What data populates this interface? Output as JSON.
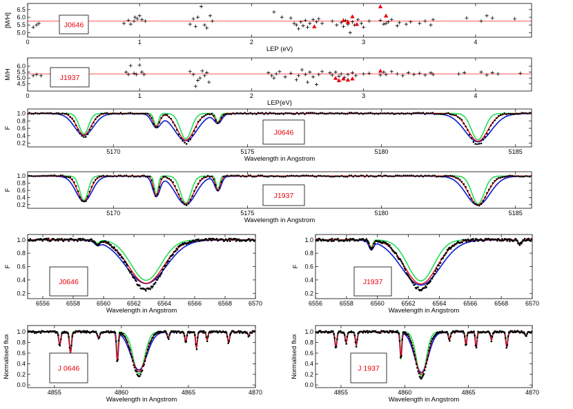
{
  "colors": {
    "observed": "#000000",
    "fit_red": "#e8000b",
    "fit_green": "#22dd55",
    "fit_blue": "#1020d0",
    "highlight_points": "#e8000b",
    "mean_line": "#ff5555"
  },
  "chart_data": [
    {
      "id": "mh-j0646",
      "type": "scatter",
      "ylabel": "[M/H]",
      "xlabel": "LEP (eV)",
      "xlim": [
        0,
        4.5
      ],
      "ylim": [
        4.7,
        6.9
      ],
      "xticks": [
        "0",
        "1",
        "2",
        "3",
        "4"
      ],
      "yticks": [
        "5.0",
        "5.5",
        "6.0",
        "6.5"
      ],
      "star_label": "J0646",
      "mean": 5.75,
      "points": [
        [
          0.05,
          5.35
        ],
        [
          0.08,
          5.5
        ],
        [
          0.1,
          5.6
        ],
        [
          0.86,
          5.6
        ],
        [
          0.9,
          5.8
        ],
        [
          0.92,
          5.55
        ],
        [
          0.95,
          5.75
        ],
        [
          0.96,
          6.0
        ],
        [
          0.98,
          5.9
        ],
        [
          1.0,
          6.1
        ],
        [
          1.02,
          5.85
        ],
        [
          1.05,
          5.75
        ],
        [
          1.45,
          5.55
        ],
        [
          1.48,
          5.9
        ],
        [
          1.5,
          5.4
        ],
        [
          1.52,
          6.0
        ],
        [
          1.55,
          6.7
        ],
        [
          1.58,
          5.5
        ],
        [
          1.6,
          5.3
        ],
        [
          1.63,
          6.1
        ],
        [
          1.65,
          5.75
        ],
        [
          2.2,
          6.35
        ],
        [
          2.27,
          6.0
        ],
        [
          2.35,
          5.95
        ],
        [
          2.38,
          5.6
        ],
        [
          2.4,
          5.5
        ],
        [
          2.42,
          5.25
        ],
        [
          2.44,
          5.7
        ],
        [
          2.46,
          5.45
        ],
        [
          2.48,
          5.8
        ],
        [
          2.5,
          5.35
        ],
        [
          2.52,
          5.6
        ],
        [
          2.55,
          5.85
        ],
        [
          2.58,
          5.7
        ],
        [
          2.6,
          5.9
        ],
        [
          2.63,
          5.6
        ],
        [
          2.72,
          5.75
        ],
        [
          2.76,
          5.5
        ],
        [
          2.8,
          5.65
        ],
        [
          2.82,
          5.4
        ],
        [
          2.84,
          5.8
        ],
        [
          2.86,
          5.55
        ],
        [
          2.88,
          5.0
        ],
        [
          2.9,
          5.7
        ],
        [
          2.92,
          5.5
        ],
        [
          2.95,
          5.85
        ],
        [
          2.98,
          5.6
        ],
        [
          3.0,
          5.35
        ],
        [
          3.05,
          5.75
        ],
        [
          3.15,
          5.8
        ],
        [
          3.18,
          5.55
        ],
        [
          3.2,
          5.6
        ],
        [
          3.22,
          5.7
        ],
        [
          3.25,
          5.85
        ],
        [
          3.3,
          5.45
        ],
        [
          3.32,
          5.65
        ],
        [
          3.38,
          5.55
        ],
        [
          3.42,
          5.7
        ],
        [
          3.5,
          5.6
        ],
        [
          3.55,
          5.75
        ],
        [
          3.6,
          5.5
        ],
        [
          3.62,
          5.85
        ],
        [
          3.92,
          5.95
        ],
        [
          4.05,
          5.75
        ],
        [
          4.1,
          6.1
        ],
        [
          4.15,
          5.95
        ],
        [
          4.35,
          5.9
        ]
      ],
      "highlight": [
        [
          2.56,
          5.4
        ],
        [
          2.82,
          5.8
        ],
        [
          2.86,
          5.7
        ],
        [
          2.9,
          6.05
        ],
        [
          2.94,
          5.55
        ],
        [
          3.15,
          6.7
        ],
        [
          3.2,
          6.1
        ]
      ]
    },
    {
      "id": "mh-j1937",
      "type": "scatter",
      "ylabel": "M/H",
      "xlabel": "LEP(eV)",
      "xlim": [
        0,
        4.5
      ],
      "ylim": [
        3.9,
        6.7
      ],
      "xticks": [
        "0",
        "1",
        "2",
        "3",
        "4"
      ],
      "yticks": [
        "4.5",
        "5.0",
        "5.5",
        "6.0"
      ],
      "star_label": "J1937",
      "mean": 5.35,
      "points": [
        [
          0.05,
          5.2
        ],
        [
          0.08,
          5.3
        ],
        [
          0.12,
          5.2
        ],
        [
          0.88,
          5.5
        ],
        [
          0.9,
          5.3
        ],
        [
          0.92,
          6.05
        ],
        [
          0.95,
          5.4
        ],
        [
          0.97,
          5.3
        ],
        [
          1.0,
          6.1
        ],
        [
          1.02,
          5.5
        ],
        [
          1.04,
          5.3
        ],
        [
          1.45,
          5.55
        ],
        [
          1.48,
          5.3
        ],
        [
          1.5,
          4.3
        ],
        [
          1.52,
          4.8
        ],
        [
          1.54,
          5.0
        ],
        [
          1.56,
          5.6
        ],
        [
          1.58,
          5.2
        ],
        [
          1.6,
          5.45
        ],
        [
          1.62,
          4.65
        ],
        [
          2.15,
          5.45
        ],
        [
          2.18,
          5.2
        ],
        [
          2.2,
          5.0
        ],
        [
          2.22,
          5.35
        ],
        [
          2.25,
          5.55
        ],
        [
          2.3,
          5.1
        ],
        [
          2.35,
          5.4
        ],
        [
          2.4,
          4.85
        ],
        [
          2.42,
          5.2
        ],
        [
          2.45,
          5.7
        ],
        [
          2.48,
          5.3
        ],
        [
          2.5,
          4.65
        ],
        [
          2.52,
          5.5
        ],
        [
          2.55,
          5.1
        ],
        [
          2.58,
          4.45
        ],
        [
          2.6,
          5.3
        ],
        [
          2.63,
          5.55
        ],
        [
          2.7,
          5.45
        ],
        [
          2.72,
          5.25
        ],
        [
          2.75,
          5.5
        ],
        [
          2.78,
          5.15
        ],
        [
          2.8,
          5.35
        ],
        [
          2.83,
          5.05
        ],
        [
          2.86,
          5.3
        ],
        [
          2.9,
          5.45
        ],
        [
          2.93,
          5.2
        ],
        [
          3.0,
          5.35
        ],
        [
          3.05,
          5.4
        ],
        [
          3.15,
          5.25
        ],
        [
          3.18,
          5.5
        ],
        [
          3.2,
          5.3
        ],
        [
          3.25,
          5.55
        ],
        [
          3.3,
          5.35
        ],
        [
          3.35,
          5.2
        ],
        [
          3.4,
          5.45
        ],
        [
          3.45,
          5.3
        ],
        [
          3.5,
          5.4
        ],
        [
          3.55,
          5.25
        ],
        [
          3.6,
          5.45
        ],
        [
          3.62,
          5.3
        ],
        [
          3.85,
          5.35
        ],
        [
          3.9,
          5.45
        ],
        [
          4.05,
          5.5
        ],
        [
          4.1,
          5.25
        ],
        [
          4.15,
          5.45
        ],
        [
          4.2,
          5.35
        ],
        [
          4.4,
          5.4
        ]
      ],
      "highlight": [
        [
          2.75,
          5.0
        ],
        [
          2.78,
          4.8
        ],
        [
          2.82,
          4.95
        ],
        [
          2.86,
          4.85
        ],
        [
          2.9,
          4.95
        ],
        [
          3.15,
          5.6
        ]
      ]
    },
    {
      "id": "spec-mgb-j0646",
      "type": "line",
      "ylabel": "F",
      "xlabel": "Wavelength in Angstrom",
      "xlim": [
        5166.8,
        5185.6
      ],
      "ylim": [
        0.1,
        1.12
      ],
      "xticks": [
        "5170",
        "5175",
        "5180",
        "5185"
      ],
      "yticks": [
        "0.2",
        "0.4",
        "0.6",
        "0.8",
        "1.0"
      ],
      "star_label": "J0646",
      "lines": [
        [
          5168.9,
          0.58,
          0.25,
          0.2
        ],
        [
          5171.6,
          0.35,
          0.12,
          0.2
        ],
        [
          5172.7,
          0.72,
          0.3,
          0.3
        ],
        [
          5173.9,
          0.25,
          0.1,
          0.3
        ],
        [
          5183.6,
          0.75,
          0.35,
          0.35
        ]
      ],
      "observed_depth": 1.12,
      "red_depth": 1.0,
      "red_width": 1.05,
      "green_depth": 0.95,
      "green_width": 0.7,
      "blue_depth": 1.0,
      "blue_width": 1.4,
      "blue_wing": 0.14
    },
    {
      "id": "spec-mgb-j1937",
      "type": "line",
      "ylabel": "F",
      "xlabel": "Wavelength in Angstrom",
      "xlim": [
        5166.8,
        5185.6
      ],
      "ylim": [
        0.1,
        1.12
      ],
      "xticks": [
        "5170",
        "5175",
        "5180",
        "5185"
      ],
      "yticks": [
        "0.2",
        "0.4",
        "0.6",
        "0.8",
        "1.0"
      ],
      "star_label": "J1937",
      "lines": [
        [
          5168.9,
          0.7,
          0.22,
          0.2
        ],
        [
          5171.6,
          0.55,
          0.1,
          0.2
        ],
        [
          5172.7,
          0.78,
          0.28,
          0.3
        ],
        [
          5173.9,
          0.4,
          0.09,
          0.3
        ],
        [
          5183.6,
          0.8,
          0.33,
          0.35
        ]
      ],
      "observed_depth": 1.03,
      "red_depth": 1.0,
      "red_width": 1.05,
      "green_depth": 0.97,
      "green_width": 0.7,
      "blue_depth": 1.0,
      "blue_width": 1.35,
      "blue_wing": 0.12
    },
    {
      "id": "spec-ha-j0646",
      "type": "line",
      "ylabel": "F",
      "xlabel": "Wavelength in Angstrom",
      "xlim": [
        6555.0,
        6570.0
      ],
      "ylim": [
        0.12,
        1.08
      ],
      "xticks": [
        "6556",
        "6558",
        "6560",
        "6562",
        "6564",
        "6566",
        "6568",
        "6570"
      ],
      "yticks": [
        "0.2",
        "0.4",
        "0.6",
        "0.8",
        "1.0"
      ],
      "star_label": "J0646",
      "lines": [
        [
          6562.8,
          0.65,
          1.1,
          0.0
        ],
        [
          6559.6,
          0.05,
          0.15,
          0.0
        ]
      ],
      "observed_depth": 1.15,
      "red_depth": 1.0,
      "red_width": 1.05,
      "green_depth": 0.93,
      "green_width": 0.9,
      "blue_depth": 1.0,
      "blue_width": 1.2,
      "blue_wing": 0.04
    },
    {
      "id": "spec-ha-j1937",
      "type": "line",
      "ylabel": "F",
      "xlabel": "Wavelength in Angstrom",
      "xlim": [
        6556.0,
        6570.0
      ],
      "ylim": [
        0.12,
        1.08
      ],
      "xticks": [
        "6556",
        "6558",
        "6560",
        "6562",
        "6564",
        "6566",
        "6568",
        "6570"
      ],
      "yticks": [
        "0.2",
        "0.4",
        "0.6",
        "0.8",
        "1.0"
      ],
      "star_label": "J1937",
      "lines": [
        [
          6562.8,
          0.66,
          1.0,
          0.0
        ],
        [
          6559.6,
          0.12,
          0.12,
          0.0
        ],
        [
          6569.2,
          0.06,
          0.1,
          0.0
        ]
      ],
      "observed_depth": 1.12,
      "red_depth": 1.0,
      "red_width": 1.05,
      "green_depth": 0.93,
      "green_width": 0.85,
      "blue_depth": 1.02,
      "blue_width": 1.25,
      "blue_wing": 0.05
    },
    {
      "id": "spec-hb-j0646",
      "type": "line",
      "ylabel": "Normalised flux",
      "xlabel": "Wavelength in Angstrom",
      "xlim": [
        4853.0,
        4870.0
      ],
      "ylim": [
        -0.05,
        1.12
      ],
      "xticks": [
        "4855",
        "4860",
        "4865",
        "4870"
      ],
      "yticks": [
        "0.0",
        "0.2",
        "0.4",
        "0.6",
        "0.8",
        "1.0"
      ],
      "star_label": "J 0646",
      "lines": [
        [
          4861.3,
          0.75,
          0.5,
          0.0
        ],
        [
          4855.4,
          0.25,
          0.07,
          0.0
        ],
        [
          4856.2,
          0.4,
          0.07,
          0.0
        ],
        [
          4858.3,
          0.12,
          0.08,
          0.0
        ],
        [
          4859.7,
          0.55,
          0.06,
          0.0
        ],
        [
          4863.5,
          0.12,
          0.07,
          0.0
        ],
        [
          4864.8,
          0.2,
          0.06,
          0.0
        ],
        [
          4865.6,
          0.3,
          0.06,
          0.0
        ],
        [
          4866.4,
          0.15,
          0.06,
          0.0
        ],
        [
          4868.0,
          0.2,
          0.07,
          0.0
        ],
        [
          4869.5,
          0.08,
          0.06,
          0.0
        ]
      ],
      "observed_depth": 1.1,
      "red_depth": 1.0,
      "red_width": 1.05,
      "green_depth": 1.05,
      "green_width": 0.85,
      "blue_depth": 0.95,
      "blue_width": 1.2,
      "blue_wing": 0.06
    },
    {
      "id": "spec-hb-j1937",
      "type": "line",
      "ylabel": "Normalised flux",
      "xlabel": "Wavelength in Angstrom",
      "xlim": [
        4853.0,
        4870.0
      ],
      "ylim": [
        -0.05,
        1.12
      ],
      "xticks": [
        "4855",
        "4860",
        "4865",
        "4870"
      ],
      "yticks": [
        "0.0",
        "0.2",
        "0.4",
        "0.6",
        "0.8",
        "1.0"
      ],
      "star_label": "J 1937",
      "lines": [
        [
          4861.3,
          0.8,
          0.45,
          0.0
        ],
        [
          4854.6,
          0.3,
          0.07,
          0.0
        ],
        [
          4855.4,
          0.2,
          0.07,
          0.0
        ],
        [
          4856.2,
          0.25,
          0.07,
          0.0
        ],
        [
          4859.7,
          0.5,
          0.06,
          0.0
        ],
        [
          4863.5,
          0.15,
          0.07,
          0.0
        ],
        [
          4864.8,
          0.25,
          0.06,
          0.0
        ],
        [
          4865.6,
          0.3,
          0.06,
          0.0
        ],
        [
          4866.8,
          0.15,
          0.06,
          0.0
        ],
        [
          4868.0,
          0.28,
          0.07,
          0.0
        ],
        [
          4869.5,
          0.08,
          0.06,
          0.0
        ]
      ],
      "observed_depth": 1.08,
      "red_depth": 1.0,
      "red_width": 1.05,
      "green_depth": 1.05,
      "green_width": 0.85,
      "blue_depth": 0.95,
      "blue_width": 1.2,
      "blue_wing": 0.05
    }
  ]
}
